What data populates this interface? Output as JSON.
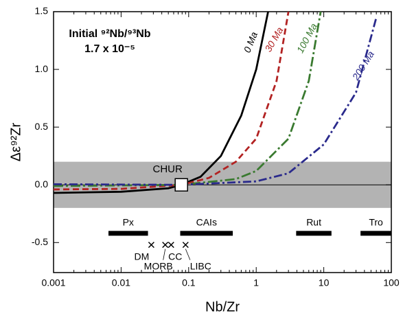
{
  "chart_data": {
    "type": "line",
    "x_label": "Nb/Zr",
    "y_label": "Δε⁹²Zr",
    "annotation": [
      "Initial ⁹²Nb/⁹³Nb",
      "1.7 x 10⁻⁵"
    ],
    "xscale": "log",
    "xlim": [
      0.001,
      100
    ],
    "ylim": [
      -0.76,
      1.5
    ],
    "xticks": [
      0.001,
      0.01,
      0.1,
      1,
      10,
      100
    ],
    "yticks": [
      1.5,
      {
        "value": 1.0,
        "label": "1.0"
      },
      0.5,
      {
        "value": 0.0,
        "label": "0.0"
      },
      -0.5
    ],
    "band": {
      "ylim": [
        -0.2,
        0.2
      ],
      "color": "#b3b3b3"
    },
    "zero_line": 0,
    "series": [
      {
        "name": "0 Ma",
        "color": "#000000",
        "dash": "none",
        "x": [
          0.001,
          0.01,
          0.05,
          0.078,
          0.15,
          0.3,
          0.6,
          1.0,
          1.5
        ],
        "values": [
          -0.07,
          -0.06,
          -0.03,
          0,
          0.07,
          0.25,
          0.6,
          1.0,
          1.5
        ]
      },
      {
        "name": "30 Ma",
        "color": "#b22222",
        "dash": "9 5",
        "x": [
          0.001,
          0.01,
          0.078,
          0.2,
          0.5,
          1,
          2,
          3
        ],
        "values": [
          -0.04,
          -0.035,
          0,
          0.06,
          0.2,
          0.4,
          0.9,
          1.5
        ]
      },
      {
        "name": "100 Ma",
        "color": "#3a7a30",
        "dash": "14 4 3 4",
        "x": [
          0.001,
          0.078,
          0.5,
          1,
          3,
          6,
          9
        ],
        "values": [
          -0.01,
          0,
          0.05,
          0.12,
          0.4,
          0.9,
          1.5
        ]
      },
      {
        "name": "200 Ma",
        "color": "#2a2a8c",
        "dash": "12 4 3 4",
        "x": [
          0.001,
          0.078,
          1,
          3,
          10,
          30,
          60
        ],
        "values": [
          0.005,
          0,
          0.03,
          0.1,
          0.35,
          0.8,
          1.45
        ]
      }
    ],
    "reference_point": {
      "label": "CHUR",
      "x": 0.078,
      "y": 0
    },
    "ranges": [
      {
        "label": "Px",
        "x": [
          0.0065,
          0.025
        ],
        "y": -0.42
      },
      {
        "label": "CAIs",
        "x": [
          0.075,
          0.45
        ],
        "y": -0.42
      },
      {
        "label": "Rut",
        "x": [
          3.9,
          13
        ],
        "y": -0.42
      },
      {
        "label": "Tro",
        "x": [
          35,
          100
        ],
        "y": -0.42
      }
    ],
    "points": [
      {
        "label": "DM",
        "x": 0.028,
        "y": -0.52
      },
      {
        "label": "MORB",
        "x": 0.045,
        "y": -0.52
      },
      {
        "label": "CC",
        "x": 0.055,
        "y": -0.52
      },
      {
        "label": "LIBC",
        "x": 0.09,
        "y": -0.52
      }
    ]
  }
}
